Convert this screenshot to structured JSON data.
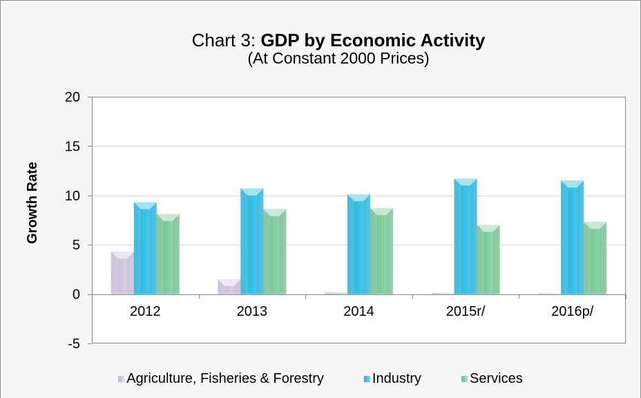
{
  "chart_data": {
    "type": "bar",
    "title": {
      "prefix": "Chart 3:",
      "emphasis": "GDP by Economic Activity"
    },
    "subtitle": "(At Constant 2000 Prices)",
    "ylabel": "Growth Rate",
    "categories": [
      "2012",
      "2013",
      "2014",
      "2015r/",
      "2016p/"
    ],
    "ylim": [
      -5,
      20
    ],
    "yticks": [
      20,
      15,
      10,
      5,
      0,
      -5
    ],
    "grid": true,
    "legend": "bottom",
    "series": [
      {
        "name": "Agriculture, Fisheries & Forestry",
        "values": [
          4.3,
          1.5,
          0.2,
          0.1,
          0.0
        ],
        "color": "#d6cae4"
      },
      {
        "name": "Industry",
        "values": [
          9.3,
          10.7,
          10.1,
          11.7,
          11.5
        ],
        "color": "#38c2ea"
      },
      {
        "name": "Services",
        "values": [
          8.1,
          8.6,
          8.7,
          7.0,
          7.3
        ],
        "color": "#85d0a2"
      }
    ]
  }
}
